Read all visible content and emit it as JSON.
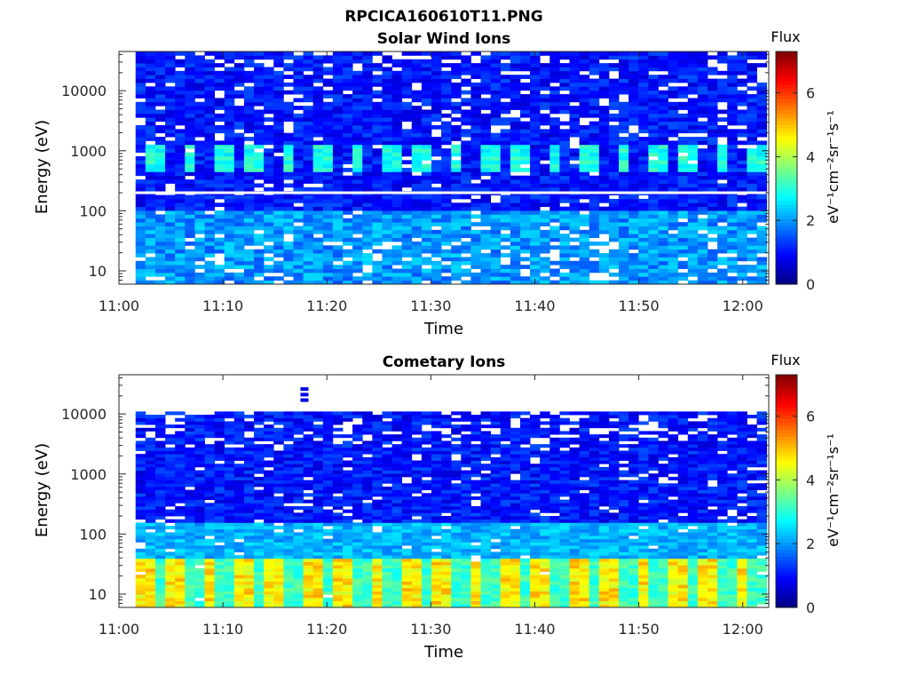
{
  "figure": {
    "title": "RPCICA160610T11.PNG"
  },
  "colormap": {
    "name": "jet",
    "stops": [
      "#00007f",
      "#0000ff",
      "#007fff",
      "#00ffff",
      "#7fff7f",
      "#ffff00",
      "#ff7f00",
      "#ff0000",
      "#7f0000"
    ]
  },
  "chart_data": [
    {
      "type": "heatmap",
      "title": "Solar Wind Ions",
      "xlabel": "Time",
      "ylabel": "Energy (eV)",
      "x_ticks": [
        "11:00",
        "11:10",
        "11:20",
        "11:30",
        "11:40",
        "11:50",
        "12:00"
      ],
      "x_tick_minutes": [
        0,
        10,
        20,
        30,
        40,
        50,
        60
      ],
      "xlim_minutes": [
        0,
        62.5
      ],
      "y_scale": "log",
      "y_ticks": [
        "10",
        "100",
        "1000",
        "10000"
      ],
      "y_tick_values": [
        10,
        100,
        1000,
        10000
      ],
      "ylim": [
        6,
        45000
      ],
      "data_time_range_minutes": [
        1.6,
        62.3
      ],
      "colorbar": {
        "title": "Flux",
        "label": "eV⁻¹cm⁻²sr⁻¹s⁻¹",
        "ticks": [
          "0",
          "2",
          "4",
          "6"
        ],
        "range": [
          0,
          7.3
        ]
      },
      "features": {
        "time_bins": 64,
        "energy_bins": 60,
        "background_flux": [
          0.6,
          1.5
        ],
        "beam_energy_eV": [
          450,
          1300
        ],
        "beam_flux": [
          2.5,
          3.3
        ],
        "beam_period_minutes": 3.2,
        "beam_start_minutes": 2.8,
        "gap_energy_eV": 200,
        "low_energy_band_eV": [
          6,
          100
        ],
        "low_energy_flux": [
          1.5,
          2.5
        ]
      }
    },
    {
      "type": "heatmap",
      "title": "Cometary Ions",
      "xlabel": "Time",
      "ylabel": "Energy (eV)",
      "x_ticks": [
        "11:00",
        "11:10",
        "11:20",
        "11:30",
        "11:40",
        "11:50",
        "12:00"
      ],
      "x_tick_minutes": [
        0,
        10,
        20,
        30,
        40,
        50,
        60
      ],
      "xlim_minutes": [
        0,
        62.5
      ],
      "y_scale": "log",
      "y_ticks": [
        "10",
        "100",
        "1000",
        "10000"
      ],
      "y_tick_values": [
        10,
        100,
        1000,
        10000
      ],
      "ylim": [
        6,
        45000
      ],
      "data_time_range_minutes": [
        1.6,
        62.3
      ],
      "colorbar": {
        "title": "Flux",
        "label": "eV⁻¹cm⁻²sr⁻¹s⁻¹",
        "ticks": [
          "0",
          "2",
          "4",
          "6"
        ],
        "range": [
          0,
          7.3
        ]
      },
      "features": {
        "time_bins": 64,
        "energy_bins": 60,
        "top_energy_eV": 11000,
        "background_flux": [
          0.6,
          1.5
        ],
        "mid_band_eV": [
          40,
          150
        ],
        "mid_band_flux": [
          1.8,
          2.6
        ],
        "low_band_eV": [
          6,
          40
        ],
        "low_band_flux_peak": [
          4.2,
          5.2
        ],
        "low_band_flux_trough": [
          2.8,
          3.5
        ],
        "low_band_period_minutes": 3.2,
        "isolated_points_eV": [
          26000,
          21000,
          17000
        ],
        "isolated_points_minutes": 17.8
      }
    }
  ]
}
